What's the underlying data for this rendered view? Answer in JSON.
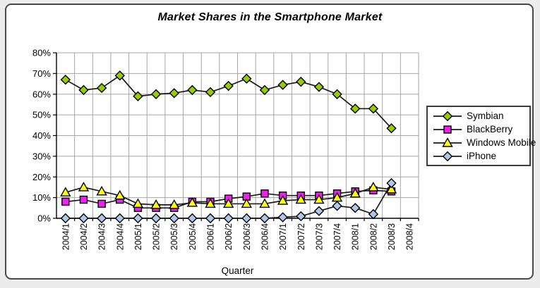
{
  "window": {
    "page_background": "#ececec",
    "card_background": "#ffffff",
    "card_border_color": "#4a4a4a"
  },
  "chart_data": {
    "type": "line",
    "title": "Market Shares in the Smartphone Market",
    "xlabel": "Quarter",
    "ylabel": "",
    "ylim": [
      0,
      80
    ],
    "ytick_step": 10,
    "ytick_labels": [
      "0%",
      "10%",
      "20%",
      "30%",
      "40%",
      "50%",
      "60%",
      "70%",
      "80%"
    ],
    "grid": true,
    "legend_position": "right",
    "categories": [
      "2004/1",
      "2004/2",
      "2004/3",
      "2004/4",
      "2005/1",
      "2005/2",
      "2005/3",
      "2005/4",
      "2006/1",
      "2006/2",
      "2006/3",
      "2006/4",
      "2007/1",
      "2007/2",
      "2007/3",
      "2007/4",
      "2008/1",
      "2008/2",
      "2008/3",
      "2008/4"
    ],
    "series": [
      {
        "name": "Symbian",
        "marker": "diamond",
        "color": "#99CC00",
        "values": [
          67,
          62,
          63,
          69,
          59,
          60,
          60.5,
          62,
          61,
          64,
          67.5,
          62,
          64.5,
          66,
          63.5,
          60,
          53,
          53,
          43.5,
          null
        ]
      },
      {
        "name": "BlackBerry",
        "marker": "square",
        "color": "#EE22EE",
        "values": [
          8,
          9,
          7,
          9,
          5,
          5,
          5,
          8,
          8,
          9.5,
          10.5,
          12,
          11,
          11,
          11,
          12,
          13,
          13.5,
          13,
          null
        ]
      },
      {
        "name": "Windows Mobile",
        "marker": "triangle",
        "color": "#FFFF00",
        "values": [
          12.5,
          15,
          13,
          11,
          7,
          6.5,
          6.5,
          7.5,
          7,
          7,
          7,
          7,
          8.5,
          9,
          9,
          10,
          12,
          15,
          14,
          null
        ]
      },
      {
        "name": "iPhone",
        "marker": "diamond",
        "color": "#ADC9EA",
        "values": [
          0,
          0,
          0,
          0,
          0,
          0,
          0,
          0,
          0,
          0,
          0,
          0,
          0.5,
          1,
          3.5,
          6,
          5,
          2,
          17,
          null
        ]
      }
    ],
    "colors": {
      "line": "#1a1a1a",
      "gridline": "#a6a6a6",
      "axis": "#000000"
    }
  }
}
